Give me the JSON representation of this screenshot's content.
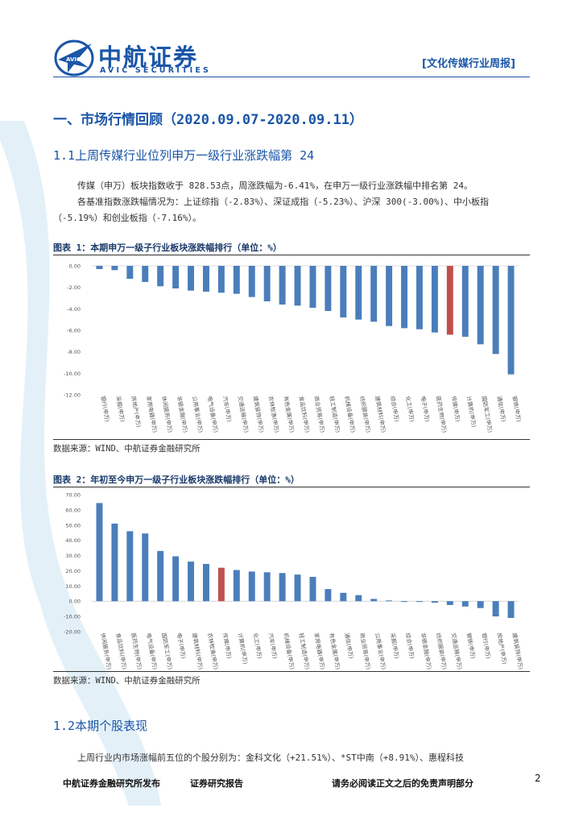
{
  "header": {
    "brand_cn": "中航证券",
    "brand_en": "AVIC SECURITIES",
    "logo_badge": "AVIC",
    "report_tag": "[文化传媒行业周报]"
  },
  "section": {
    "title": "一、市场行情回顾（2020.09.07-2020.09.11）",
    "sub1": "1.1上周传媒行业位列申万一级行业涨跌幅第 24",
    "para1_line1": "传媒（申万）板块指数收于 828.53点，周涨跌幅为-6.41%，在申万一级行业涨跌幅中排名第 24。",
    "para1_line2": "各基准指数涨跌幅情况为：上证综指（-2.83%）、深证成指（-5.23%）、沪深 300(-3.00%)、中小板指",
    "para1_line3": "（-5.19%）和创业板指（-7.16%）。",
    "sub2": "1.2本期个股表现",
    "para2": "上周行业内市场涨幅前五位的个股分别为：金科文化（+21.51%）、*ST中南（+8.91%）、惠程科技"
  },
  "figure1": {
    "title": "图表 1：本期申万一级子行业板块涨跌幅排行（单位：%）",
    "source": "数据来源：WIND、中航证券金融研究所"
  },
  "figure2": {
    "title": "图表 2：年初至今申万一级子行业板块涨跌幅排行（单位：%）",
    "source": "数据来源：WIND、中航证券金融研究所"
  },
  "footer": {
    "left": "中航证券金融研究所发布",
    "middle": "证券研究报告",
    "right": "请务必阅读正文之后的免责声明部分",
    "page": "2"
  },
  "colors": {
    "bar": "#4a7ebb",
    "highlight": "#c0504d",
    "brand": "#1a56a8"
  },
  "chart_data": [
    {
      "type": "bar",
      "title": "本期申万一级子行业板块涨跌幅排行（单位：%）",
      "ylim": [
        -12,
        0
      ],
      "yticks": [
        "0.00",
        "-2.00",
        "-4.00",
        "-6.00",
        "-8.00",
        "-10.00",
        "-12.00"
      ],
      "highlight": "传媒(申万)",
      "categories": [
        "银行(申万)",
        "采掘(申万)",
        "房地产(申万)",
        "家用电器(申万)",
        "休闲服务(申万)",
        "非银金融(申万)",
        "公用事业(申万)",
        "电气设备(申万)",
        "汽车(申万)",
        "交通运输(申万)",
        "建筑装饰(申万)",
        "农林牧渔(申万)",
        "有色金属(申万)",
        "食品饮料(申万)",
        "商业贸易(申万)",
        "轻工制造(申万)",
        "机械设备(申万)",
        "纺织服装(申万)",
        "建筑材料(申万)",
        "综合(申万)",
        "化工(申万)",
        "电子(申万)",
        "医药生物(申万)",
        "传媒(申万)",
        "计算机(申万)",
        "国防军工(申万)",
        "通信(申万)",
        "钢铁(申万)"
      ],
      "values": [
        -0.3,
        -0.4,
        -1.2,
        -1.5,
        -1.9,
        -2.1,
        -2.3,
        -2.4,
        -2.5,
        -2.6,
        -2.9,
        -3.3,
        -3.6,
        -3.7,
        -3.9,
        -4.2,
        -4.8,
        -5.0,
        -5.2,
        -5.6,
        -5.8,
        -5.9,
        -6.2,
        -6.41,
        -6.6,
        -7.3,
        -8.2,
        -10.1
      ]
    },
    {
      "type": "bar",
      "title": "年初至今申万一级子行业板块涨跌幅排行（单位：%）",
      "ylim": [
        -20,
        70
      ],
      "yticks": [
        "70.00",
        "60.00",
        "50.00",
        "40.00",
        "30.00",
        "20.00",
        "10.00",
        "0.00",
        "-10.00",
        "-20.00"
      ],
      "highlight": "传媒(申万)",
      "categories": [
        "休闲服务(申万)",
        "食品饮料(申万)",
        "医药生物(申万)",
        "电气设备(申万)",
        "国防军工(申万)",
        "电子(申万)",
        "建筑材料(申万)",
        "农林牧渔(申万)",
        "传媒(申万)",
        "计算机(申万)",
        "化工(申万)",
        "汽车(申万)",
        "机械设备(申万)",
        "轻工制造(申万)",
        "家用电器(申万)",
        "有色金属(申万)",
        "通信(申万)",
        "商业贸易(申万)",
        "公用事业(申万)",
        "采掘(申万)",
        "综合(申万)",
        "非银金融(申万)",
        "纺织服装(申万)",
        "交通运输(申万)",
        "钢铁(申万)",
        "银行(申万)",
        "房地产(申万)",
        "建筑装饰(申万)"
      ],
      "values": [
        64.5,
        51,
        46,
        44.5,
        33,
        29.5,
        26,
        24.5,
        22,
        20.5,
        19.5,
        19,
        18.5,
        17.5,
        16,
        8,
        5.5,
        4,
        1.5,
        0.5,
        -0.5,
        -0.5,
        -1,
        -2.5,
        -3.5,
        -4.5,
        -10,
        -11
      ]
    }
  ]
}
